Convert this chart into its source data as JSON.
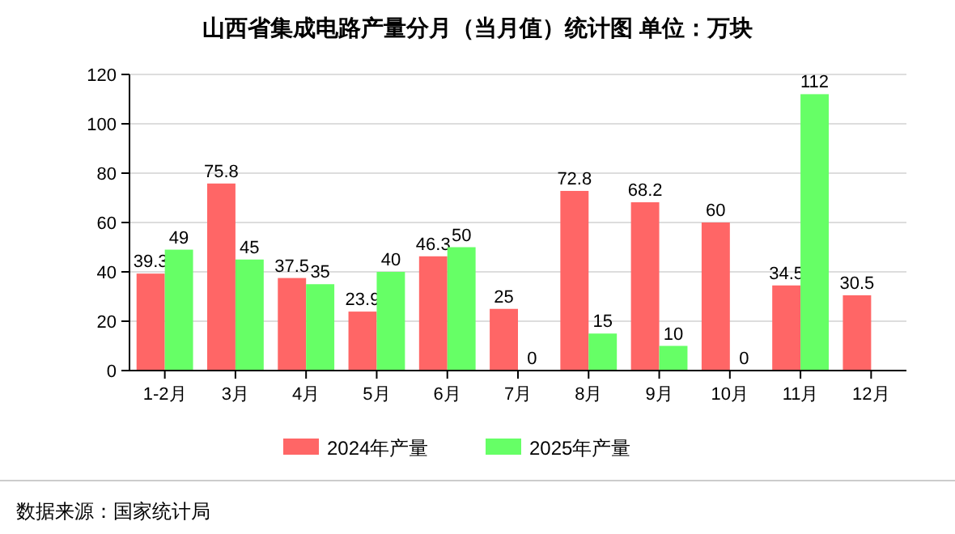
{
  "chart_data": {
    "type": "bar",
    "title": "山西省集成电路产量分月（当月值）统计图 单位：万块",
    "categories": [
      "1-2月",
      "3月",
      "4月",
      "5月",
      "6月",
      "7月",
      "8月",
      "9月",
      "10月",
      "11月",
      "12月"
    ],
    "series": [
      {
        "name": "2024年产量",
        "color": "#ff6666",
        "values": [
          39.3,
          75.8,
          37.5,
          23.9,
          46.3,
          25,
          72.8,
          68.2,
          60,
          34.5,
          30.5
        ]
      },
      {
        "name": "2025年产量",
        "color": "#66ff66",
        "values": [
          49,
          45,
          35,
          40,
          50,
          0,
          15,
          10,
          0,
          112,
          null
        ]
      }
    ],
    "ylim": [
      0,
      120
    ],
    "yticks": [
      0,
      20,
      40,
      60,
      80,
      100,
      120
    ],
    "grid": "y",
    "legend": "bottom",
    "data_labels": true,
    "annotations": [
      "数据来源：国家统计局"
    ]
  }
}
